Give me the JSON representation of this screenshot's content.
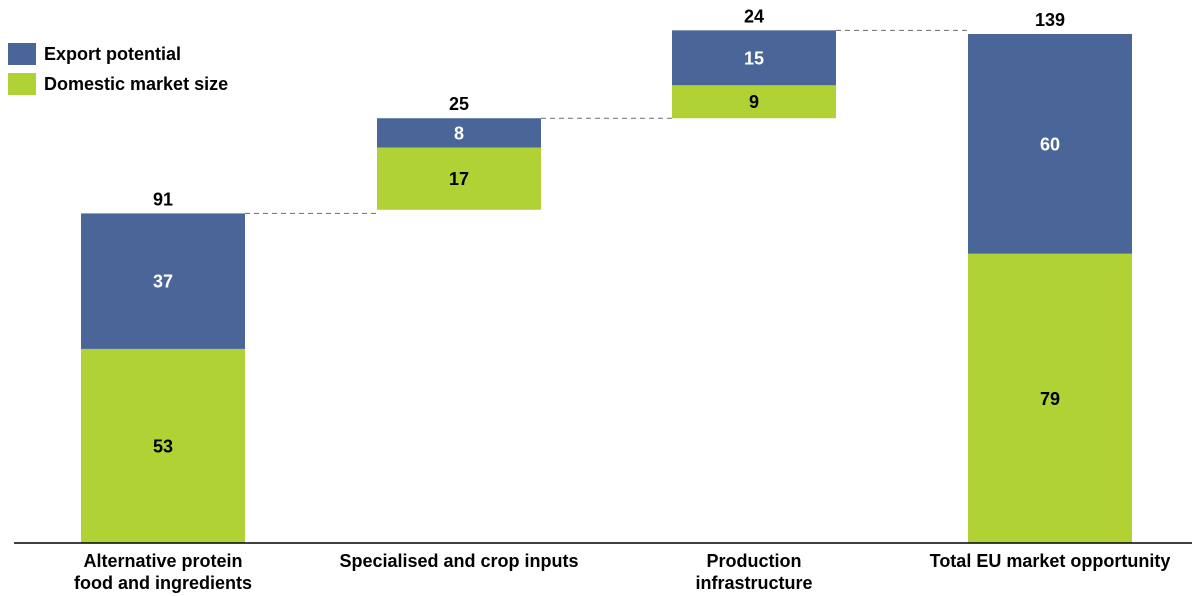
{
  "chart_data": {
    "type": "bar",
    "subtype": "stacked-waterfall",
    "categories": [
      [
        "Alternative protein",
        "food and ingredients"
      ],
      [
        "Specialised and crop inputs"
      ],
      [
        "Production",
        "infrastructure"
      ],
      [
        "Total EU market opportunity"
      ]
    ],
    "series": [
      {
        "name": "Domestic market size",
        "color": "#b0d235",
        "label_color": "#000000",
        "values": [
          53,
          17,
          9,
          79
        ]
      },
      {
        "name": "Export potential",
        "color": "#4a6698",
        "label_color": "#ffffff",
        "values": [
          37,
          8,
          15,
          60
        ]
      }
    ],
    "totals": [
      91,
      25,
      24,
      139
    ],
    "bases": [
      0,
      91,
      116,
      0
    ],
    "ylim": [
      0,
      139
    ],
    "legend": {
      "position": "top-left",
      "order": [
        "Export potential",
        "Domestic market size"
      ]
    },
    "grid": false,
    "connectors": true
  }
}
